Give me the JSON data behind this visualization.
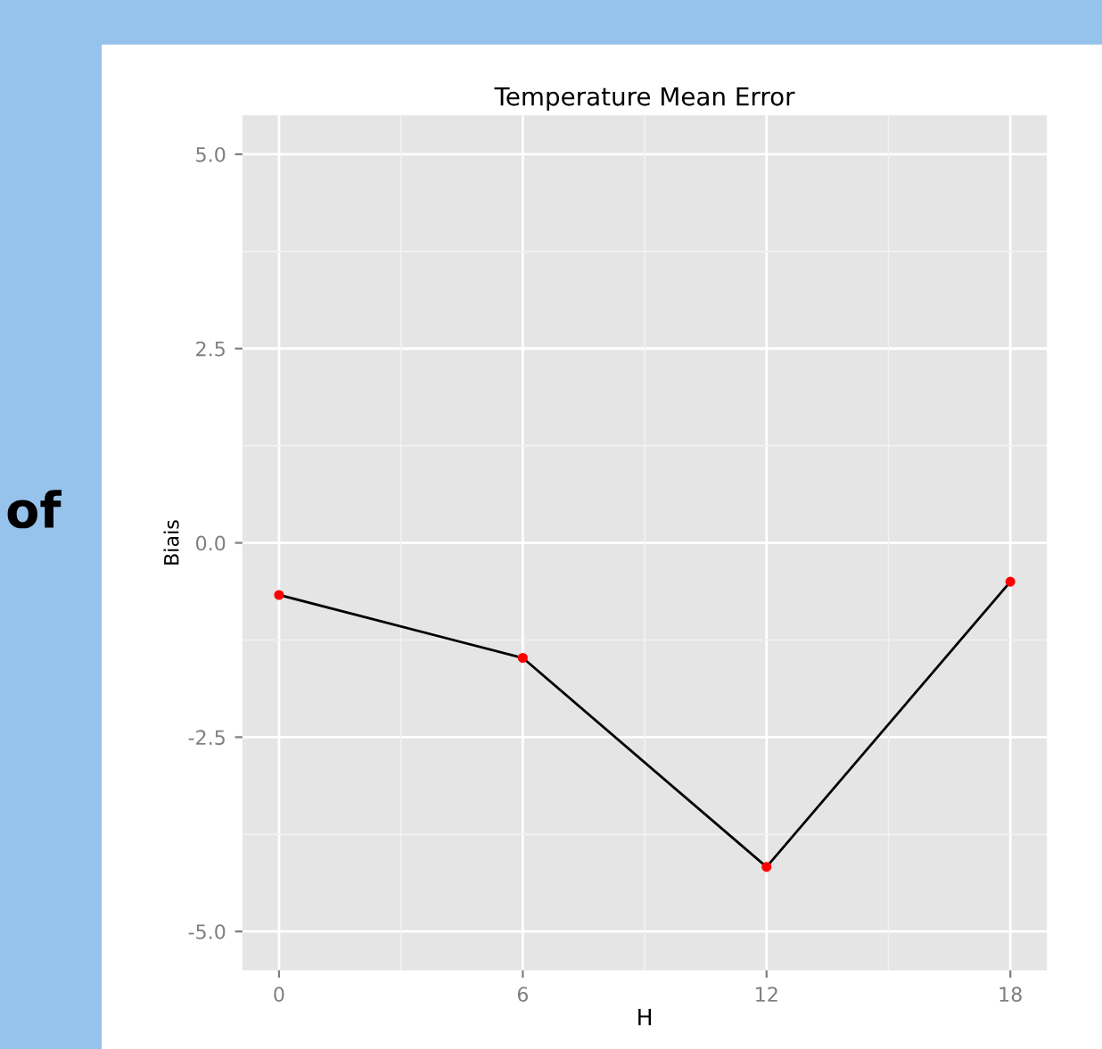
{
  "chart_data": {
    "type": "line",
    "title": "Temperature Mean Error",
    "xlabel": "H",
    "ylabel": "Biais",
    "x": [
      0,
      6,
      12,
      18
    ],
    "series": [
      {
        "color": "#000000",
        "values": [
          -0.67,
          -1.48,
          -4.17,
          -0.5
        ]
      }
    ],
    "marker": "circle",
    "xlim": [
      -0.9,
      18.9
    ],
    "xticks": [
      0,
      6,
      12,
      18
    ],
    "ylim": [
      -5.5,
      5.5
    ],
    "yticks": [
      {
        "value": -5,
        "label": "-5.0"
      },
      {
        "value": -2.5,
        "label": "-2.5"
      },
      {
        "value": 0,
        "label": "0.0"
      },
      {
        "value": 2.5,
        "label": "2.5"
      },
      {
        "value": 5,
        "label": "5.0"
      }
    ],
    "grid": true,
    "annotations": [
      "of"
    ]
  }
}
